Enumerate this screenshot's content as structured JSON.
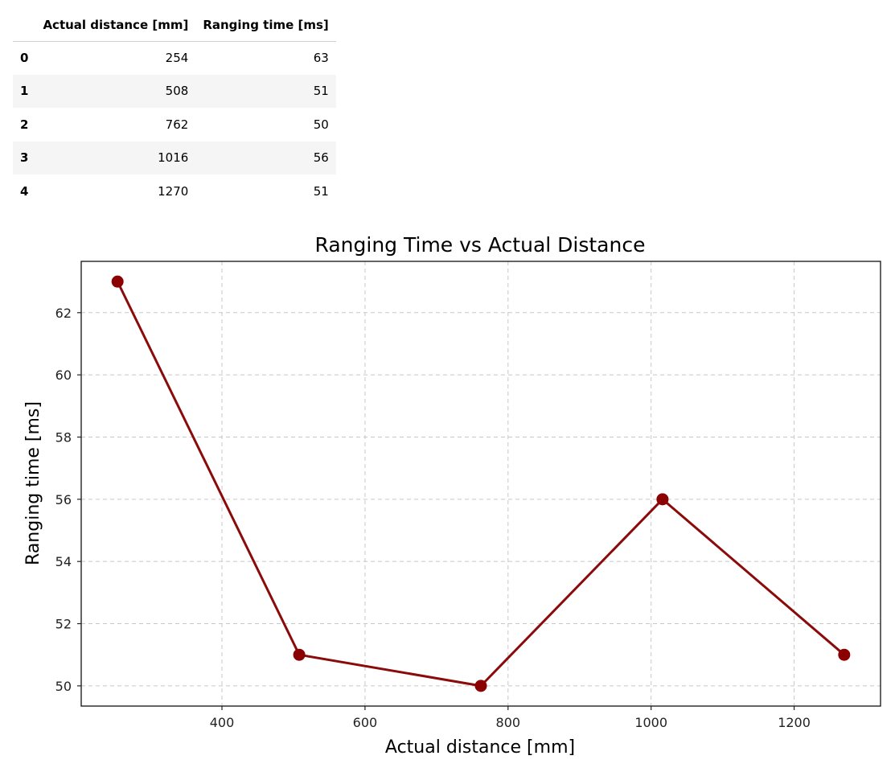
{
  "table": {
    "columns": [
      "",
      "Actual distance [mm]",
      "Ranging time [ms]"
    ],
    "rows": [
      {
        "index": "0",
        "distance": "254",
        "time": "63"
      },
      {
        "index": "1",
        "distance": "508",
        "time": "51"
      },
      {
        "index": "2",
        "distance": "762",
        "time": "50"
      },
      {
        "index": "3",
        "distance": "1016",
        "time": "56"
      },
      {
        "index": "4",
        "distance": "1270",
        "time": "51"
      }
    ]
  },
  "chart_data": {
    "type": "line",
    "title": "Ranging Time vs Actual Distance",
    "xlabel": "Actual distance [mm]",
    "ylabel": "Ranging time [ms]",
    "x": [
      254,
      508,
      762,
      1016,
      1270
    ],
    "series": [
      {
        "values": [
          63,
          51,
          50,
          56,
          51
        ]
      }
    ],
    "xlim": [
      203.2,
      1320.8
    ],
    "ylim": [
      49.35,
      63.65
    ],
    "xticks": [
      400,
      600,
      800,
      1000,
      1200
    ],
    "yticks": [
      50,
      52,
      54,
      56,
      58,
      60,
      62
    ],
    "grid": true,
    "line_color": "#8b0a0a",
    "marker_color": "#8b0000",
    "grid_color": "#c8c8c8"
  }
}
